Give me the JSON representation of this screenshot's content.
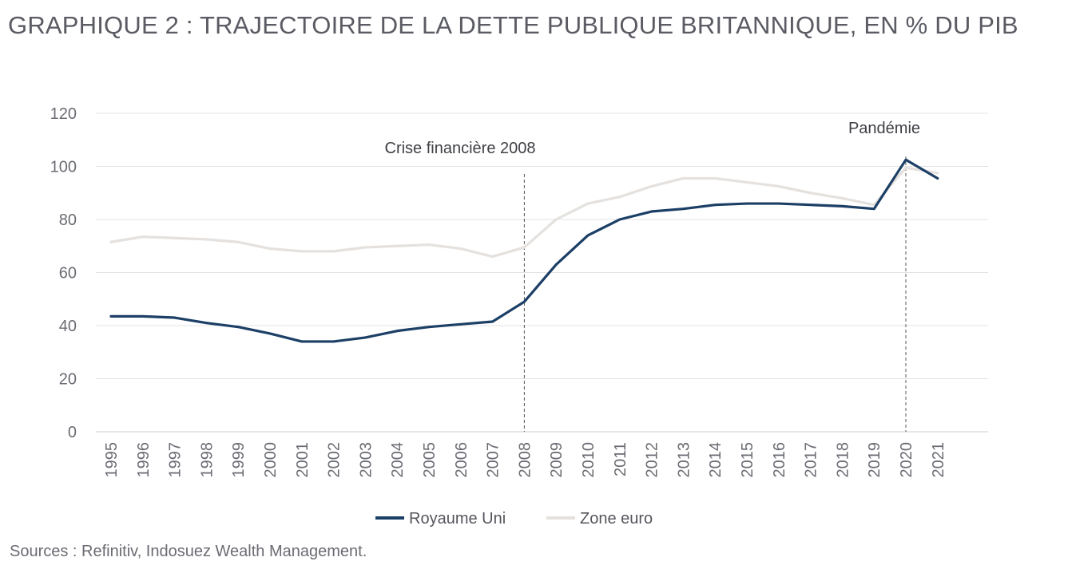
{
  "title": "GRAPHIQUE 2 : TRAJECTOIRE DE LA DETTE PUBLIQUE BRITANNIQUE, EN % DU PIB",
  "source": "Sources : Refinitiv, Indosuez Wealth Management.",
  "colors": {
    "uk": "#1c3f66",
    "euro": "#e4e1de",
    "grid": "#e3e3e3",
    "axis": "#cfcfcf",
    "annotation_line": "#5a5a5a"
  },
  "chart_data": {
    "type": "line",
    "title": "GRAPHIQUE 2 : TRAJECTOIRE DE LA DETTE PUBLIQUE BRITANNIQUE, EN % DU PIB",
    "xlabel": "",
    "ylabel": "",
    "ylim": [
      0,
      120
    ],
    "yticks": [
      0,
      20,
      40,
      60,
      80,
      100,
      120
    ],
    "grid": true,
    "legend_position": "bottom",
    "categories": [
      "1995",
      "1996",
      "1997",
      "1998",
      "1999",
      "2000",
      "2001",
      "2002",
      "2003",
      "2004",
      "2005",
      "2006",
      "2007",
      "2008",
      "2009",
      "2010",
      "2011",
      "2012",
      "2013",
      "2014",
      "2015",
      "2016",
      "2017",
      "2018",
      "2019",
      "2020",
      "2021"
    ],
    "series": [
      {
        "name": "Royaume Uni",
        "color": "#1c3f66",
        "values": [
          43.5,
          43.5,
          43,
          41,
          39.5,
          37,
          34,
          34,
          35.5,
          38,
          39.5,
          40.5,
          41.5,
          49,
          63,
          74,
          80,
          83,
          84,
          85.5,
          86,
          86,
          85.5,
          85,
          84,
          102.5,
          95.5
        ]
      },
      {
        "name": "Zone euro",
        "color": "#e4e1de",
        "values": [
          71.5,
          73.5,
          73,
          72.5,
          71.5,
          69,
          68,
          68,
          69.5,
          70,
          70.5,
          69,
          66,
          69.5,
          80,
          86,
          88.5,
          92.5,
          95.5,
          95.5,
          94,
          92.5,
          90,
          88,
          85.5,
          99.5,
          97.5
        ]
      }
    ],
    "annotations": [
      {
        "label": "Crise financière 2008",
        "category": "2008"
      },
      {
        "label": "Pandémie",
        "category": "2020"
      }
    ]
  }
}
